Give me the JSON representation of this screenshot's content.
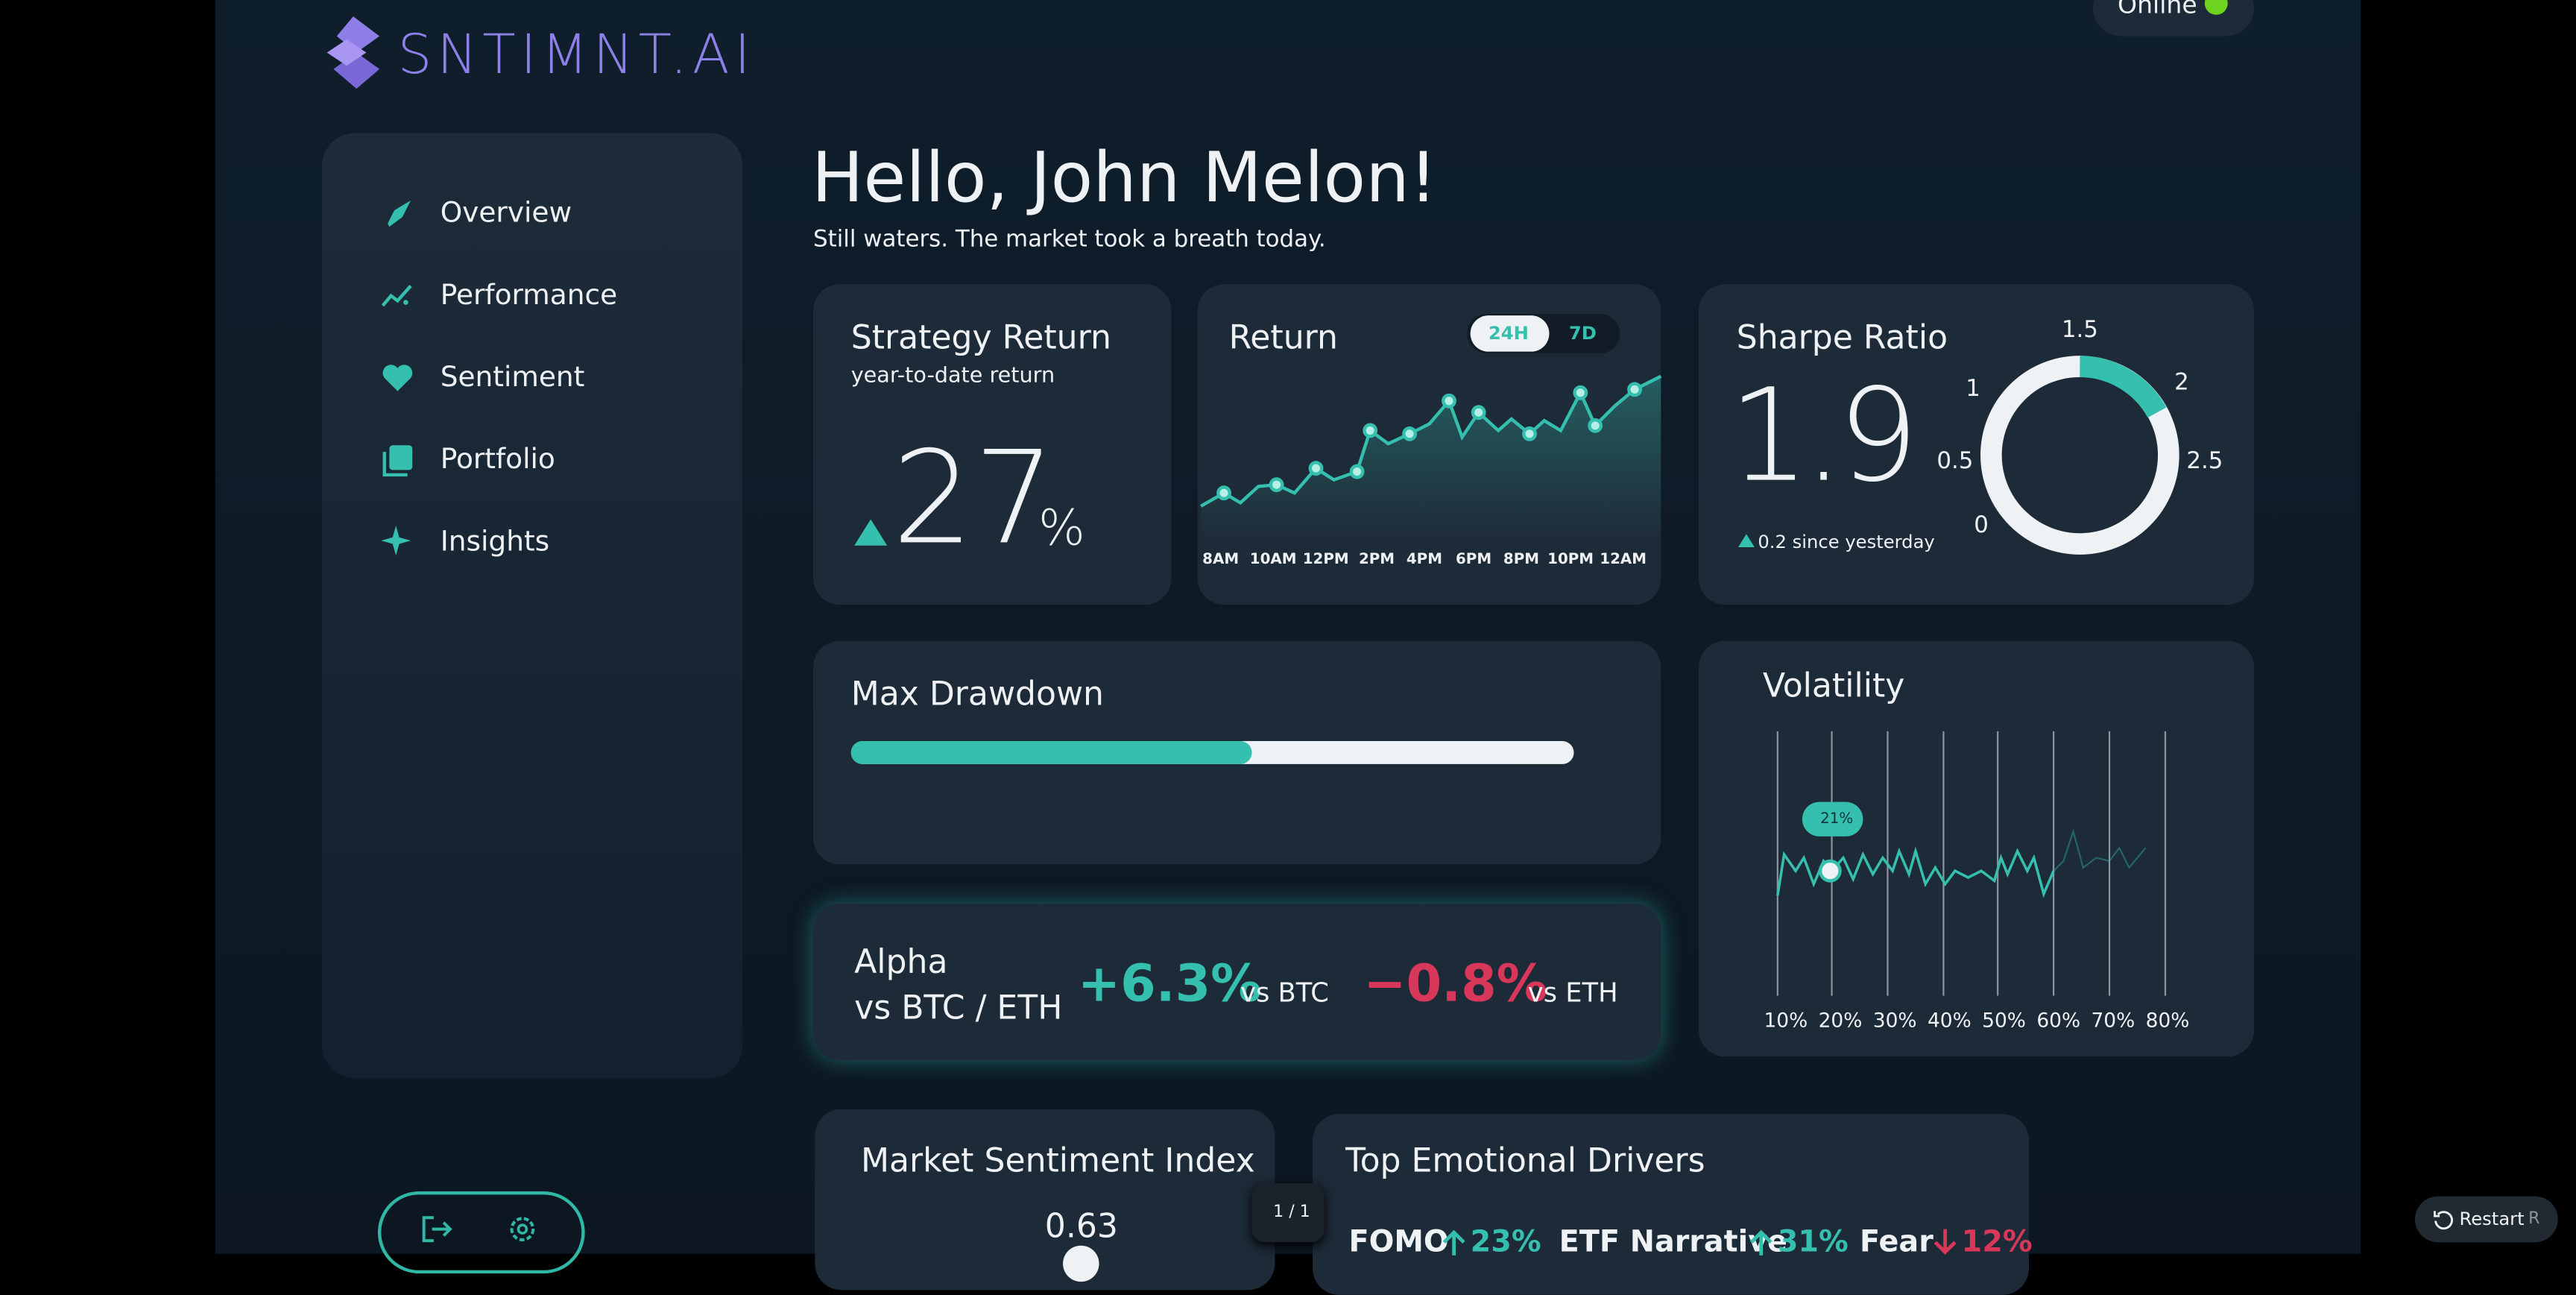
{
  "header": {
    "logo": "SNTIMNT.AI",
    "status": "Online"
  },
  "sidebar": {
    "nav": [
      "Overview",
      "Performance",
      "Sentiment",
      "Portfolio",
      "Insights"
    ]
  },
  "greeting": {
    "title": "Hello, John Melon!",
    "subtitle": "Still waters. The market took a breath today."
  },
  "strategy_return": {
    "title": "Strategy Return",
    "subtitle": "year-to-date return",
    "value": 27,
    "unit": "%"
  },
  "return_chart": {
    "title": "Return",
    "toggles": [
      "24H",
      "7D"
    ],
    "x_labels": [
      "8AM",
      "10AM",
      "12PM",
      "2PM",
      "4PM",
      "6PM",
      "8PM",
      "10PM",
      "12AM"
    ]
  },
  "sharpe": {
    "title": "Sharpe Ratio",
    "value": 1.9,
    "change": "0.2 since yesterday",
    "scale": [
      0,
      0.5,
      1,
      1.5,
      2,
      2.5
    ]
  },
  "max_drawdown": {
    "title": "Max Drawdown"
  },
  "alpha": {
    "title_line1": "Alpha",
    "title_line2": "vs BTC / ETH",
    "btc_value": "+6.3%",
    "btc_label": "vs BTC",
    "eth_value": "−0.8%",
    "eth_label": "vs ETH"
  },
  "volatility": {
    "title": "Volatility",
    "badge": "21%",
    "x_labels": [
      "10%",
      "20%",
      "30%",
      "40%",
      "50%",
      "60%",
      "70%",
      "80%"
    ]
  },
  "market_sentiment": {
    "title": "Market Sentiment Index",
    "value": 0.63
  },
  "emotional_drivers": {
    "title": "Top Emotional Drivers",
    "items": [
      {
        "name": "FOMO",
        "change": "23%"
      },
      {
        "name": "ETF Narrative",
        "change": "31%"
      },
      {
        "name": "Fear",
        "change": "12%"
      }
    ]
  },
  "pager": "1 / 1",
  "restart": {
    "label": "Restart",
    "shortcut": "R"
  }
}
